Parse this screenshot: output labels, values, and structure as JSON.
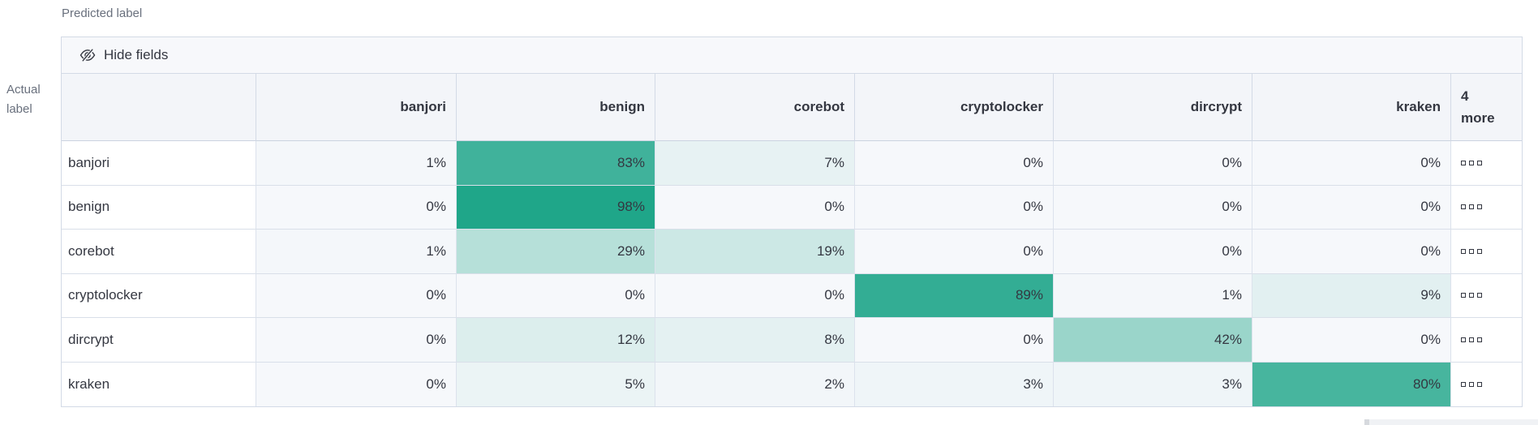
{
  "axes": {
    "predicted_label": "Predicted label",
    "actual_label_line1": "Actual",
    "actual_label_line2": "label"
  },
  "toolbar": {
    "hide_fields_label": "Hide fields",
    "hide_fields_icon": "eye-closed-icon"
  },
  "chart_data": {
    "type": "heatmap",
    "description": "Confusion matrix of actual label vs predicted label, cell values in percent",
    "x_axis_title": "Predicted label",
    "y_axis_title": "Actual label",
    "columns": [
      "banjori",
      "benign",
      "corebot",
      "cryptolocker",
      "dircrypt",
      "kraken"
    ],
    "hidden_columns_header_lines": [
      "4",
      "more"
    ],
    "rows": [
      "banjori",
      "benign",
      "corebot",
      "cryptolocker",
      "dircrypt",
      "kraken"
    ],
    "values_percent": [
      [
        1,
        83,
        7,
        0,
        0,
        0
      ],
      [
        0,
        98,
        0,
        0,
        0,
        0
      ],
      [
        1,
        29,
        19,
        0,
        0,
        0
      ],
      [
        0,
        0,
        0,
        89,
        1,
        9
      ],
      [
        0,
        12,
        8,
        0,
        42,
        0
      ],
      [
        0,
        5,
        2,
        3,
        3,
        80
      ]
    ],
    "cell_suffix": "%",
    "more_cell_icon": "boxes-horizontal-icon",
    "heat_color": "#1BA487",
    "cell_bg": "#F6F8FB",
    "legend_position": "none",
    "grid_lines": true
  },
  "colors": {
    "border": "#D3DAE6",
    "header_bg": "#F3F5F9",
    "toolbar_bg": "#F7F8FB",
    "text": "#343741",
    "muted_text": "#69707D",
    "scrollbar_track": "#F0F2F5",
    "scrollbar_thumb": "#D6D9DE"
  },
  "scrollbar": {
    "visible": true
  }
}
